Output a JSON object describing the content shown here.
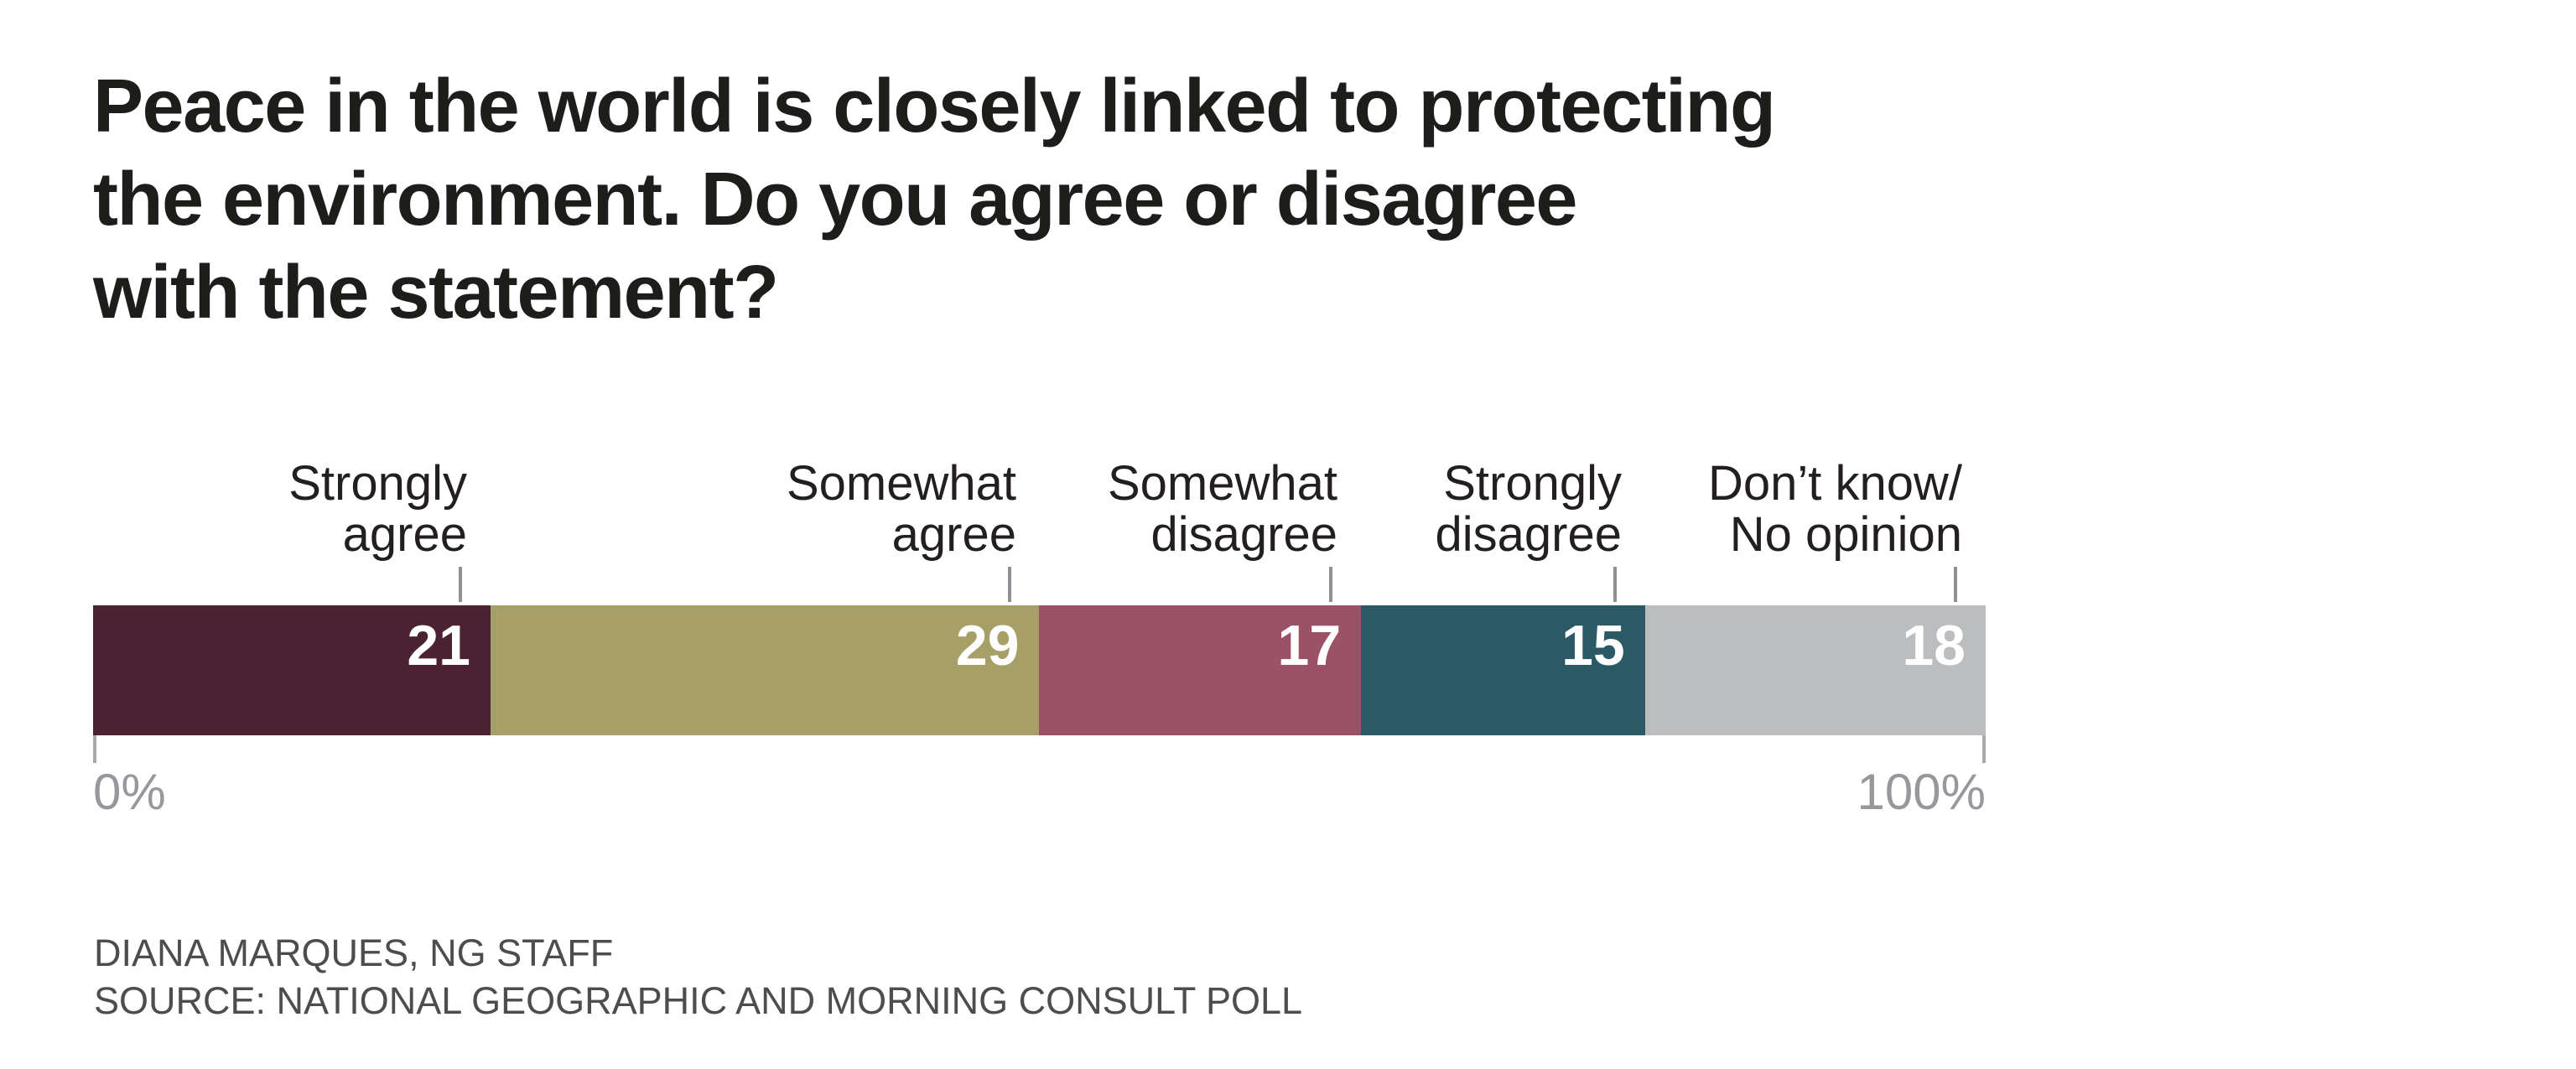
{
  "title": {
    "lines": [
      "Peace in the world is closely linked to protecting",
      "the environment. Do you agree or disagree",
      "with the statement?"
    ]
  },
  "chart_data": {
    "type": "bar",
    "subtype": "stacked-horizontal-single-bar",
    "title": "Peace in the world is closely linked to protecting the environment. Do you agree or disagree with the statement?",
    "unit": "percent",
    "xlim": [
      0,
      100
    ],
    "axis_labels": {
      "min": "0%",
      "max": "100%"
    },
    "grid": false,
    "legend_position": "labels-above-segments",
    "categories": [
      "Strongly agree",
      "Somewhat agree",
      "Somewhat disagree",
      "Strongly disagree",
      "Don’t know/No opinion"
    ],
    "values": [
      21,
      29,
      17,
      15,
      18
    ],
    "colors": [
      "#4B2231",
      "#A69F68",
      "#9B5266",
      "#2C5966",
      "#BCBDBE"
    ],
    "value_label_color": "#FFFFFF"
  },
  "labels": {
    "strongly_agree": "Strongly\nagree",
    "somewhat_agree": "Somewhat\nagree",
    "somewhat_disagree": "Somewhat\ndisagree",
    "strongly_disagree": "Strongly\ndisagree",
    "dont_know": "Don’t know/\nNo opinion"
  },
  "axis": {
    "zero": "0%",
    "hundred": "100%"
  },
  "credits": {
    "line1": "DIANA MARQUES, NG STAFF",
    "line2": "SOURCE: NATIONAL GEOGRAPHIC AND MORNING CONSULT POLL"
  }
}
